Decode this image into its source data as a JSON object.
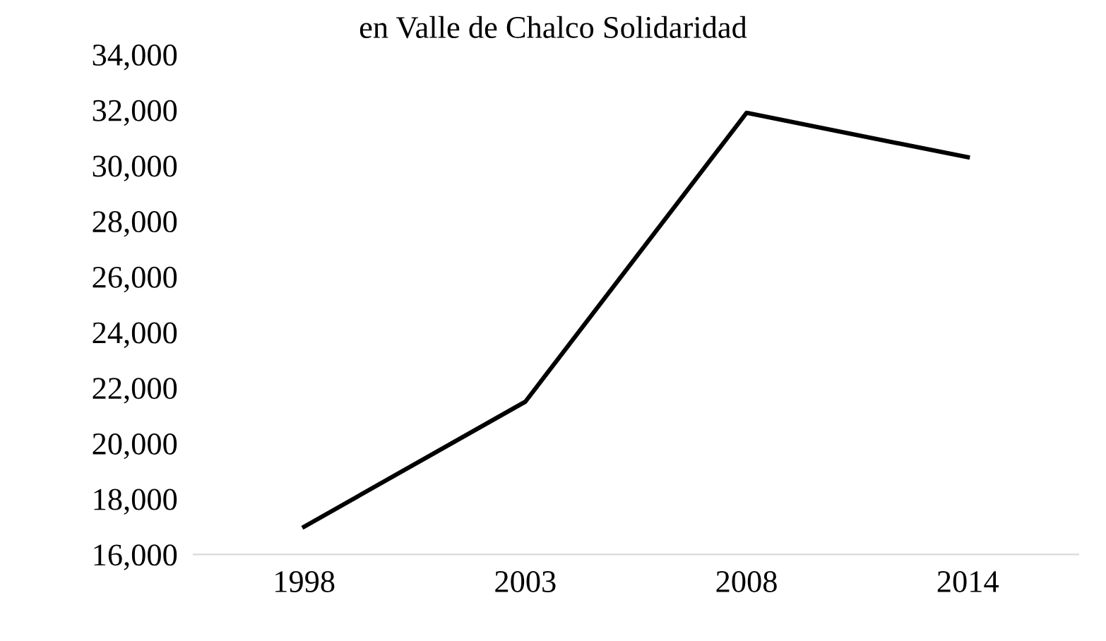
{
  "chart_data": {
    "type": "line",
    "title": "en Valle de Chalco Solidaridad",
    "categories": [
      "1998",
      "2003",
      "2008",
      "2014"
    ],
    "series": [
      {
        "color": "#000000",
        "values": [
          17000,
          21500,
          31900,
          30300
        ]
      }
    ],
    "ylim": [
      16000,
      34000
    ],
    "yticks": [
      {
        "value": 16000,
        "label": "16,000"
      },
      {
        "value": 18000,
        "label": "18,000"
      },
      {
        "value": 20000,
        "label": "20,000"
      },
      {
        "value": 22000,
        "label": "22,000"
      },
      {
        "value": 24000,
        "label": "24,000"
      },
      {
        "value": 26000,
        "label": "26,000"
      },
      {
        "value": 28000,
        "label": "28,000"
      },
      {
        "value": 30000,
        "label": "30,000"
      },
      {
        "value": 32000,
        "label": "32,000"
      },
      {
        "value": 34000,
        "label": "34,000"
      }
    ],
    "grid": false,
    "legend": false,
    "marker": "none",
    "line_style": "solid"
  }
}
